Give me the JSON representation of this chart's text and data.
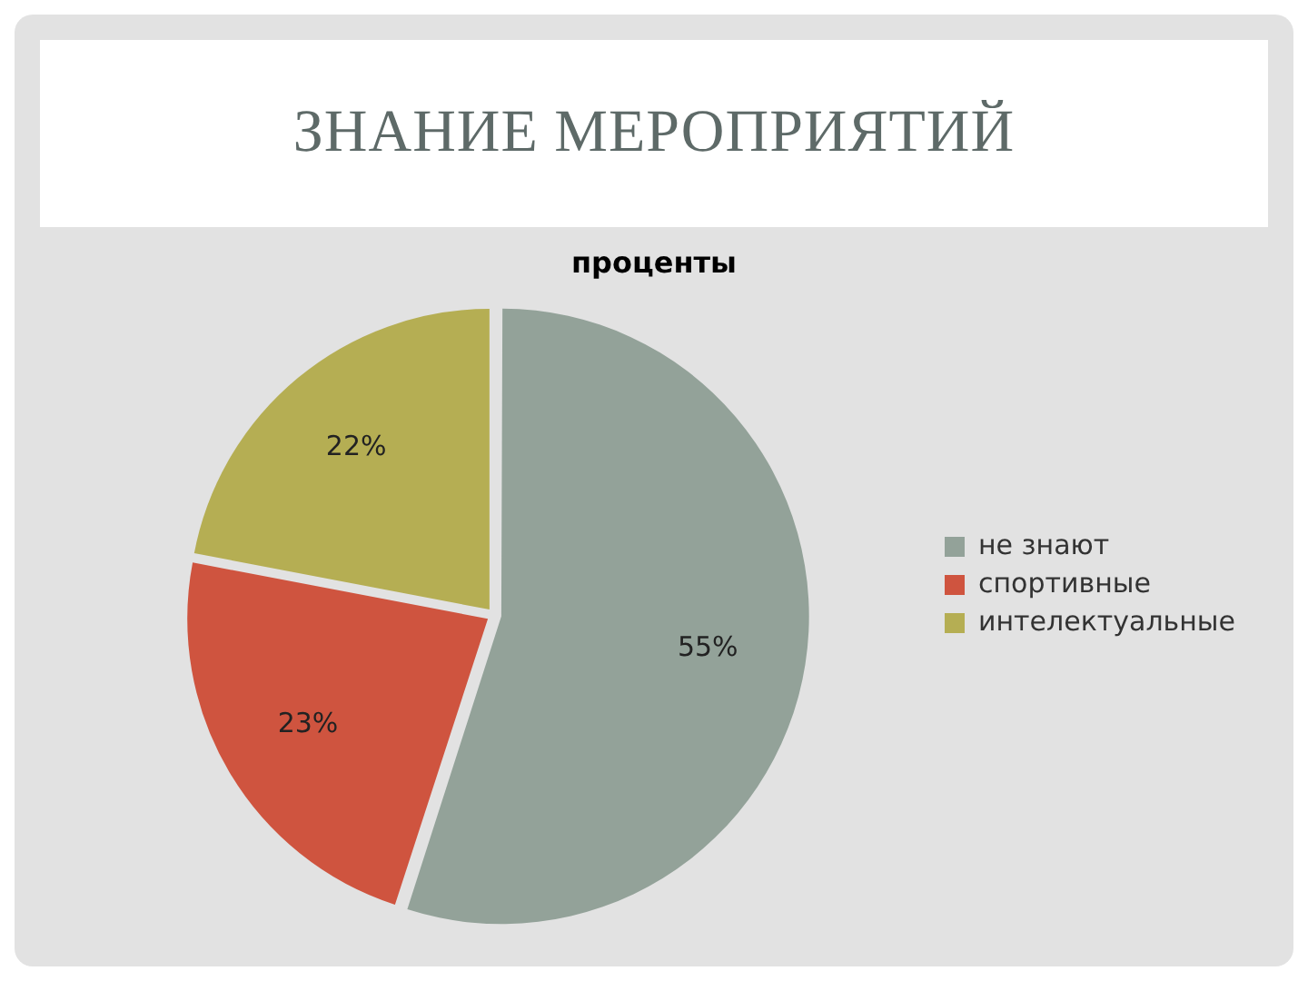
{
  "chart_data": {
    "type": "pie",
    "title": "ЗНАНИЕ МЕРОПРИЯТИЙ",
    "subtitle": "проценты",
    "categories": [
      "не знают",
      "спортивные",
      "интелектуальные"
    ],
    "values": [
      55,
      23,
      22
    ],
    "colors": [
      "#93a299",
      "#cf543f",
      "#b5ae53"
    ],
    "value_labels": [
      "55%",
      "23%",
      "22%"
    ],
    "legend": "right"
  }
}
